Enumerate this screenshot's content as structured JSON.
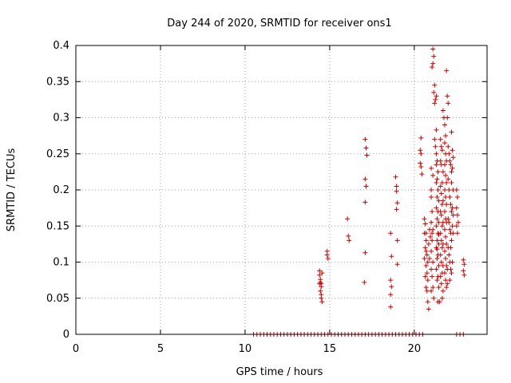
{
  "chart_data": {
    "type": "scatter",
    "title": "Day 244 of 2020, SRMTID for receiver ons1",
    "xlabel": "GPS time / hours",
    "ylabel": "SRMTID / TECUs",
    "xlim": [
      0,
      24.3
    ],
    "ylim": [
      0,
      0.4
    ],
    "grid": true,
    "legend": "none",
    "x_ticks": [
      0,
      5,
      10,
      15,
      20
    ],
    "x_tick_labels": [
      "0",
      "5",
      "10",
      "15",
      "20"
    ],
    "y_ticks": [
      0,
      0.05,
      0.1,
      0.15,
      0.2,
      0.25,
      0.3,
      0.35,
      0.4
    ],
    "y_tick_labels": [
      "0",
      "0.05",
      "0.1",
      "0.15",
      "0.2",
      "0.25",
      "0.3",
      "0.35",
      "0.4"
    ],
    "marker": "plus",
    "color": "#cc0000",
    "series": [
      {
        "name": "SRMTID",
        "points": [
          [
            14.4,
            0.088
          ],
          [
            14.4,
            0.082
          ],
          [
            14.45,
            0.076
          ],
          [
            14.45,
            0.072
          ],
          [
            14.5,
            0.07
          ],
          [
            14.5,
            0.066
          ],
          [
            14.45,
            0.06
          ],
          [
            14.5,
            0.055
          ],
          [
            14.5,
            0.05
          ],
          [
            14.55,
            0.045
          ],
          [
            14.4,
            0.07
          ],
          [
            14.55,
            0.085
          ],
          [
            14.85,
            0.115
          ],
          [
            14.85,
            0.11
          ],
          [
            14.9,
            0.105
          ],
          [
            16.05,
            0.16
          ],
          [
            16.1,
            0.136
          ],
          [
            16.15,
            0.13
          ],
          [
            17.1,
            0.27
          ],
          [
            17.15,
            0.258
          ],
          [
            17.2,
            0.248
          ],
          [
            17.1,
            0.215
          ],
          [
            17.15,
            0.205
          ],
          [
            17.1,
            0.183
          ],
          [
            17.1,
            0.113
          ],
          [
            17.05,
            0.072
          ],
          [
            18.6,
            0.14
          ],
          [
            18.65,
            0.108
          ],
          [
            18.6,
            0.075
          ],
          [
            18.65,
            0.066
          ],
          [
            18.6,
            0.055
          ],
          [
            18.6,
            0.038
          ],
          [
            18.9,
            0.218
          ],
          [
            18.95,
            0.205
          ],
          [
            18.95,
            0.198
          ],
          [
            19.0,
            0.182
          ],
          [
            18.95,
            0.173
          ],
          [
            19.0,
            0.13
          ],
          [
            19.0,
            0.097
          ],
          [
            20.4,
            0.272
          ],
          [
            20.35,
            0.255
          ],
          [
            20.4,
            0.25
          ],
          [
            20.35,
            0.237
          ],
          [
            20.4,
            0.232
          ],
          [
            20.45,
            0.222
          ],
          [
            20.6,
            0.16
          ],
          [
            20.65,
            0.153
          ],
          [
            20.6,
            0.14
          ],
          [
            20.7,
            0.13
          ],
          [
            20.65,
            0.12
          ],
          [
            20.7,
            0.115
          ],
          [
            20.75,
            0.11
          ],
          [
            20.8,
            0.1
          ],
          [
            20.7,
            0.095
          ],
          [
            20.75,
            0.085
          ],
          [
            20.65,
            0.08
          ],
          [
            20.8,
            0.075
          ],
          [
            20.7,
            0.065
          ],
          [
            20.75,
            0.06
          ],
          [
            20.8,
            0.045
          ],
          [
            20.85,
            0.035
          ],
          [
            20.9,
            0.105
          ],
          [
            20.95,
            0.135
          ],
          [
            20.9,
            0.145
          ],
          [
            20.85,
            0.125
          ],
          [
            20.6,
            0.105
          ],
          [
            20.7,
            0.14
          ],
          [
            21.0,
            0.2
          ],
          [
            21.0,
            0.19
          ],
          [
            21.05,
            0.17
          ],
          [
            21.0,
            0.155
          ],
          [
            21.1,
            0.145
          ],
          [
            21.05,
            0.13
          ],
          [
            21.0,
            0.115
          ],
          [
            21.1,
            0.1
          ],
          [
            21.0,
            0.09
          ],
          [
            21.05,
            0.08
          ],
          [
            21.1,
            0.065
          ],
          [
            21.15,
            0.05
          ],
          [
            21.0,
            0.06
          ],
          [
            21.05,
            0.14
          ],
          [
            21.1,
            0.22
          ],
          [
            21.0,
            0.23
          ],
          [
            21.1,
            0.395
          ],
          [
            21.15,
            0.385
          ],
          [
            21.1,
            0.375
          ],
          [
            21.05,
            0.37
          ],
          [
            21.2,
            0.345
          ],
          [
            21.15,
            0.335
          ],
          [
            21.3,
            0.33
          ],
          [
            21.25,
            0.325
          ],
          [
            21.2,
            0.32
          ],
          [
            21.3,
            0.283
          ],
          [
            21.2,
            0.27
          ],
          [
            21.25,
            0.26
          ],
          [
            21.3,
            0.25
          ],
          [
            21.35,
            0.24
          ],
          [
            21.3,
            0.235
          ],
          [
            21.4,
            0.225
          ],
          [
            21.35,
            0.215
          ],
          [
            21.3,
            0.21
          ],
          [
            21.4,
            0.2
          ],
          [
            21.35,
            0.19
          ],
          [
            21.45,
            0.185
          ],
          [
            21.3,
            0.175
          ],
          [
            21.4,
            0.17
          ],
          [
            21.35,
            0.16
          ],
          [
            21.45,
            0.155
          ],
          [
            21.3,
            0.15
          ],
          [
            21.4,
            0.14
          ],
          [
            21.35,
            0.13
          ],
          [
            21.45,
            0.125
          ],
          [
            21.3,
            0.12
          ],
          [
            21.4,
            0.11
          ],
          [
            21.35,
            0.105
          ],
          [
            21.45,
            0.095
          ],
          [
            21.3,
            0.09
          ],
          [
            21.4,
            0.08
          ],
          [
            21.35,
            0.075
          ],
          [
            21.45,
            0.065
          ],
          [
            21.4,
            0.045
          ],
          [
            21.5,
            0.045
          ],
          [
            21.35,
            0.118
          ],
          [
            21.45,
            0.138
          ],
          [
            21.55,
            0.27
          ],
          [
            21.6,
            0.26
          ],
          [
            21.65,
            0.255
          ],
          [
            21.55,
            0.24
          ],
          [
            21.6,
            0.235
          ],
          [
            21.7,
            0.225
          ],
          [
            21.65,
            0.21
          ],
          [
            21.55,
            0.205
          ],
          [
            21.6,
            0.195
          ],
          [
            21.7,
            0.185
          ],
          [
            21.65,
            0.18
          ],
          [
            21.55,
            0.17
          ],
          [
            21.6,
            0.165
          ],
          [
            21.7,
            0.155
          ],
          [
            21.65,
            0.15
          ],
          [
            21.55,
            0.14
          ],
          [
            21.6,
            0.13
          ],
          [
            21.7,
            0.125
          ],
          [
            21.65,
            0.12
          ],
          [
            21.55,
            0.11
          ],
          [
            21.6,
            0.1
          ],
          [
            21.7,
            0.095
          ],
          [
            21.65,
            0.085
          ],
          [
            21.55,
            0.08
          ],
          [
            21.6,
            0.07
          ],
          [
            21.7,
            0.06
          ],
          [
            21.65,
            0.05
          ],
          [
            21.7,
            0.31
          ],
          [
            21.75,
            0.3
          ],
          [
            21.8,
            0.29
          ],
          [
            21.85,
            0.275
          ],
          [
            21.9,
            0.365
          ],
          [
            21.95,
            0.33
          ],
          [
            22.0,
            0.32
          ],
          [
            21.95,
            0.3
          ],
          [
            21.8,
            0.265
          ],
          [
            21.85,
            0.25
          ],
          [
            21.9,
            0.24
          ],
          [
            21.8,
            0.235
          ],
          [
            21.85,
            0.22
          ],
          [
            21.9,
            0.21
          ],
          [
            21.8,
            0.2
          ],
          [
            21.85,
            0.19
          ],
          [
            21.9,
            0.18
          ],
          [
            21.8,
            0.17
          ],
          [
            21.85,
            0.16
          ],
          [
            21.9,
            0.155
          ],
          [
            21.8,
            0.145
          ],
          [
            21.85,
            0.135
          ],
          [
            21.9,
            0.125
          ],
          [
            21.8,
            0.115
          ],
          [
            21.85,
            0.105
          ],
          [
            21.9,
            0.095
          ],
          [
            21.8,
            0.085
          ],
          [
            21.85,
            0.075
          ],
          [
            21.9,
            0.065
          ],
          [
            21.95,
            0.07
          ],
          [
            21.95,
            0.09
          ],
          [
            22.0,
            0.26
          ],
          [
            22.05,
            0.25
          ],
          [
            22.1,
            0.24
          ],
          [
            22.15,
            0.235
          ],
          [
            22.2,
            0.225
          ],
          [
            22.0,
            0.215
          ],
          [
            22.05,
            0.2
          ],
          [
            22.1,
            0.19
          ],
          [
            22.15,
            0.18
          ],
          [
            22.2,
            0.17
          ],
          [
            22.0,
            0.16
          ],
          [
            22.05,
            0.155
          ],
          [
            22.1,
            0.145
          ],
          [
            22.15,
            0.14
          ],
          [
            22.2,
            0.13
          ],
          [
            22.0,
            0.12
          ],
          [
            22.05,
            0.11
          ],
          [
            22.1,
            0.1
          ],
          [
            22.15,
            0.09
          ],
          [
            22.2,
            0.085
          ],
          [
            22.1,
            0.075
          ],
          [
            22.2,
            0.28
          ],
          [
            22.25,
            0.255
          ],
          [
            22.3,
            0.245
          ],
          [
            22.25,
            0.23
          ],
          [
            22.2,
            0.21
          ],
          [
            22.3,
            0.2
          ],
          [
            22.25,
            0.175
          ],
          [
            22.3,
            0.165
          ],
          [
            22.25,
            0.15
          ],
          [
            22.3,
            0.14
          ],
          [
            22.15,
            0.12
          ],
          [
            22.25,
            0.1
          ],
          [
            22.5,
            0.2
          ],
          [
            22.55,
            0.19
          ],
          [
            22.5,
            0.175
          ],
          [
            22.55,
            0.165
          ],
          [
            22.6,
            0.155
          ],
          [
            22.5,
            0.15
          ],
          [
            22.55,
            0.14
          ],
          [
            22.9,
            0.103
          ],
          [
            22.95,
            0.097
          ],
          [
            22.9,
            0.088
          ],
          [
            22.95,
            0.082
          ]
        ],
        "zero_points_x": [
          10.5,
          10.7,
          10.9,
          11.1,
          11.3,
          11.5,
          11.7,
          11.9,
          12.1,
          12.3,
          12.5,
          12.7,
          12.9,
          13.1,
          13.3,
          13.5,
          13.7,
          13.9,
          14.1,
          14.3,
          14.5,
          14.7,
          14.9,
          15.1,
          15.3,
          15.5,
          15.7,
          15.9,
          16.1,
          16.3,
          16.5,
          16.7,
          16.9,
          17.1,
          17.3,
          17.5,
          17.7,
          17.9,
          18.1,
          18.3,
          18.5,
          18.7,
          18.9,
          19.1,
          19.3,
          19.5,
          19.7,
          19.9,
          20.1,
          20.3,
          20.5,
          22.5,
          22.7,
          22.9
        ]
      }
    ]
  }
}
